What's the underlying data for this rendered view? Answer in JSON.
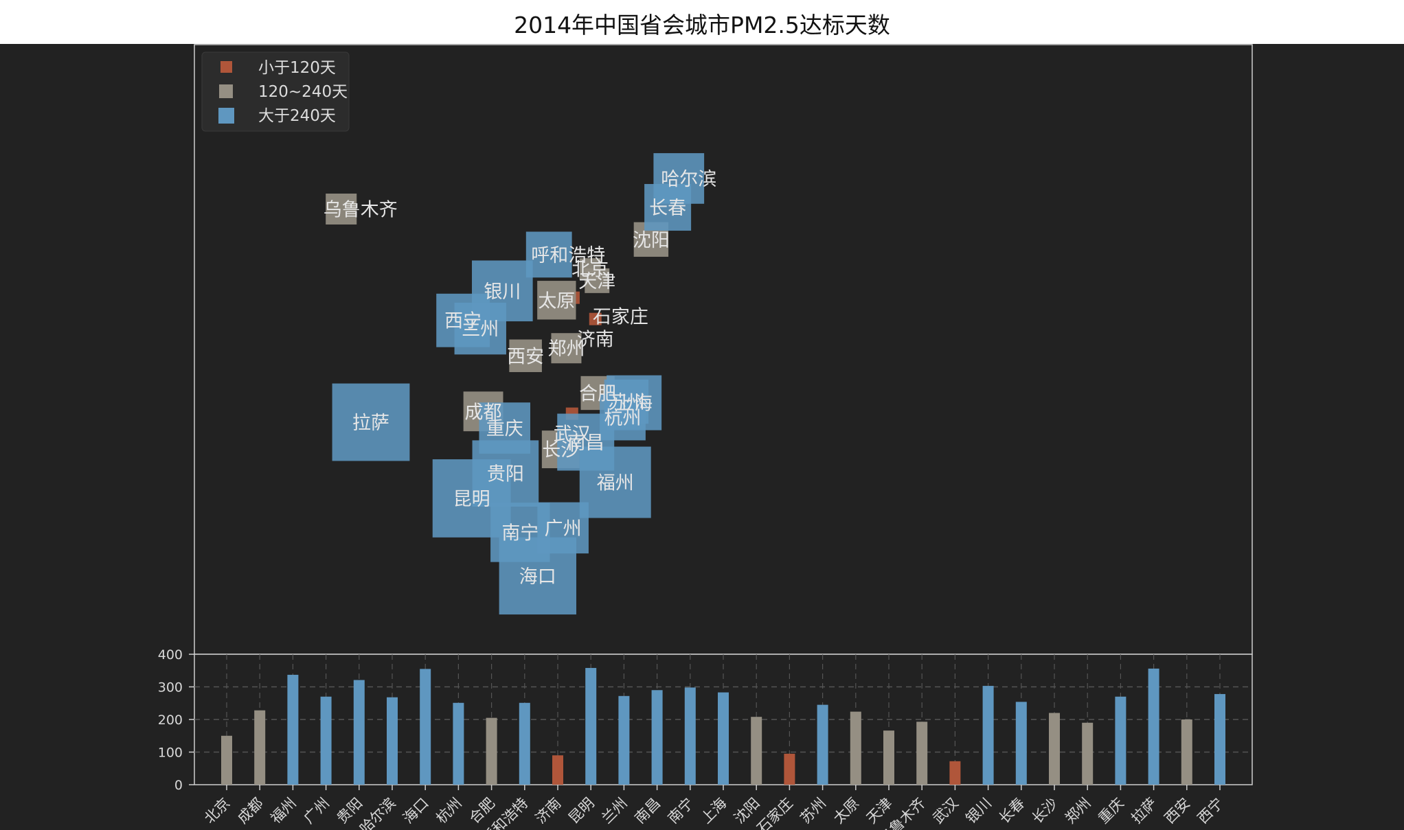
{
  "chart_data": {
    "type": "scatter+bar",
    "title": "2014年中国省会城市PM2.5达标天数",
    "legend": {
      "placement": "top-left",
      "entries": [
        {
          "label": "小于120天",
          "color": "#b0563a"
        },
        {
          "label": "120~240天",
          "color": "#958f83"
        },
        {
          "label": "大于240天",
          "color": "#5f97c0"
        }
      ]
    },
    "colors": {
      "low": "#b0563a",
      "mid": "#958f83",
      "high": "#5f97c0"
    },
    "cities": [
      {
        "name": "北京",
        "lon": 116.4,
        "lat": 39.9,
        "days": 150
      },
      {
        "name": "成都",
        "lon": 104.07,
        "lat": 30.67,
        "days": 228
      },
      {
        "name": "福州",
        "lon": 119.3,
        "lat": 26.08,
        "days": 337
      },
      {
        "name": "广州",
        "lon": 113.27,
        "lat": 23.13,
        "days": 270
      },
      {
        "name": "贵阳",
        "lon": 106.63,
        "lat": 26.65,
        "days": 321
      },
      {
        "name": "哈尔滨",
        "lon": 126.63,
        "lat": 45.75,
        "days": 268
      },
      {
        "name": "海口",
        "lon": 110.35,
        "lat": 20.02,
        "days": 355
      },
      {
        "name": "杭州",
        "lon": 120.15,
        "lat": 30.28,
        "days": 251
      },
      {
        "name": "合肥",
        "lon": 117.27,
        "lat": 31.86,
        "days": 205
      },
      {
        "name": "呼和浩特",
        "lon": 111.65,
        "lat": 40.82,
        "days": 251
      },
      {
        "name": "济南",
        "lon": 117.0,
        "lat": 36.65,
        "days": 90
      },
      {
        "name": "昆明",
        "lon": 102.73,
        "lat": 25.04,
        "days": 358
      },
      {
        "name": "兰州",
        "lon": 103.73,
        "lat": 36.03,
        "days": 272
      },
      {
        "name": "南昌",
        "lon": 115.89,
        "lat": 28.68,
        "days": 290
      },
      {
        "name": "南宁",
        "lon": 108.33,
        "lat": 22.84,
        "days": 298
      },
      {
        "name": "上海",
        "lon": 121.47,
        "lat": 31.23,
        "days": 283
      },
      {
        "name": "沈阳",
        "lon": 123.43,
        "lat": 41.8,
        "days": 208
      },
      {
        "name": "石家庄",
        "lon": 114.48,
        "lat": 38.03,
        "days": 95
      },
      {
        "name": "苏州",
        "lon": 120.58,
        "lat": 31.3,
        "days": 245
      },
      {
        "name": "太原",
        "lon": 112.53,
        "lat": 37.87,
        "days": 224
      },
      {
        "name": "天津",
        "lon": 117.2,
        "lat": 39.13,
        "days": 166
      },
      {
        "name": "乌鲁木齐",
        "lon": 87.68,
        "lat": 43.77,
        "days": 193
      },
      {
        "name": "武汉",
        "lon": 114.31,
        "lat": 30.52,
        "days": 72
      },
      {
        "name": "银川",
        "lon": 106.27,
        "lat": 38.47,
        "days": 303
      },
      {
        "name": "长春",
        "lon": 125.35,
        "lat": 43.88,
        "days": 254
      },
      {
        "name": "长沙",
        "lon": 113.0,
        "lat": 28.21,
        "days": 220
      },
      {
        "name": "郑州",
        "lon": 113.65,
        "lat": 34.76,
        "days": 190
      },
      {
        "name": "重庆",
        "lon": 106.54,
        "lat": 29.59,
        "days": 270
      },
      {
        "name": "拉萨",
        "lon": 91.11,
        "lat": 29.97,
        "days": 356
      },
      {
        "name": "西安",
        "lon": 108.95,
        "lat": 34.27,
        "days": 200
      },
      {
        "name": "西宁",
        "lon": 101.74,
        "lat": 36.56,
        "days": 278
      }
    ],
    "bar_axis": {
      "ylim": [
        0,
        400
      ],
      "yticks": [
        0,
        100,
        200,
        300,
        400
      ],
      "grid": true,
      "grid_style": "dashed"
    }
  }
}
